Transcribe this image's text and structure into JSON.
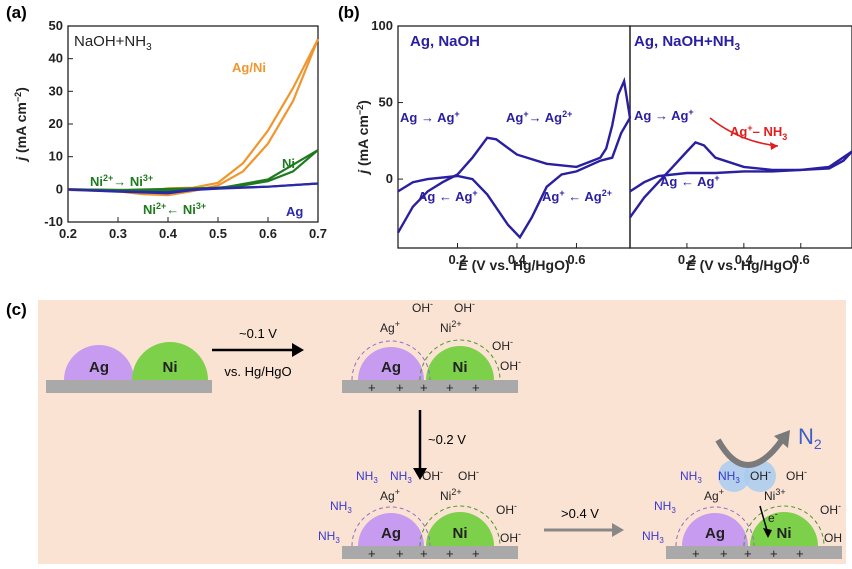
{
  "chart_data": [
    {
      "panel": "(a)",
      "type": "line",
      "title": "NaOH+NH3",
      "xlabel": "E (V vs. Hg/HgO)",
      "ylabel": "j (mA cm-2)",
      "xlim": [
        0.2,
        0.7
      ],
      "ylim": [
        -10,
        50
      ],
      "xticks": [
        "0.2",
        "0.3",
        "0.4",
        "0.5",
        "0.6",
        "0.7"
      ],
      "yticks": [
        "-10",
        "0",
        "10",
        "20",
        "30",
        "40",
        "50"
      ],
      "series": [
        {
          "name": "Ag/Ni",
          "color": "#f0962e",
          "forward": [
            [
              0.2,
              0
            ],
            [
              0.3,
              -0.3
            ],
            [
              0.35,
              -0.8
            ],
            [
              0.4,
              0.3
            ],
            [
              0.45,
              0.5
            ],
            [
              0.5,
              2
            ],
            [
              0.55,
              8
            ],
            [
              0.6,
              18
            ],
            [
              0.65,
              31
            ],
            [
              0.7,
              46
            ]
          ],
          "reverse": [
            [
              0.7,
              46
            ],
            [
              0.65,
              27
            ],
            [
              0.6,
              14
            ],
            [
              0.55,
              5.5
            ],
            [
              0.5,
              1.2
            ],
            [
              0.45,
              -0.5
            ],
            [
              0.4,
              -1.8
            ],
            [
              0.35,
              -1.5
            ],
            [
              0.3,
              -0.6
            ],
            [
              0.2,
              -0.2
            ]
          ]
        },
        {
          "name": "Ni",
          "color": "#1e7a1e",
          "forward": [
            [
              0.2,
              0
            ],
            [
              0.3,
              -0.2
            ],
            [
              0.4,
              0.1
            ],
            [
              0.5,
              0.5
            ],
            [
              0.55,
              1.2
            ],
            [
              0.6,
              2.5
            ],
            [
              0.65,
              5.5
            ],
            [
              0.7,
              12
            ]
          ],
          "reverse": [
            [
              0.7,
              12
            ],
            [
              0.6,
              3
            ],
            [
              0.5,
              0.3
            ],
            [
              0.4,
              -0.5
            ],
            [
              0.3,
              -0.2
            ],
            [
              0.2,
              0
            ]
          ]
        },
        {
          "name": "Ag",
          "color": "#2a2aa8",
          "forward": [
            [
              0.2,
              0
            ],
            [
              0.3,
              -0.6
            ],
            [
              0.4,
              -0.9
            ],
            [
              0.45,
              0
            ],
            [
              0.5,
              0.4
            ],
            [
              0.6,
              0.8
            ],
            [
              0.7,
              1.8
            ]
          ],
          "reverse": [
            [
              0.7,
              1.8
            ],
            [
              0.6,
              0.8
            ],
            [
              0.5,
              0.2
            ],
            [
              0.45,
              -0.2
            ],
            [
              0.4,
              -1.2
            ],
            [
              0.3,
              -0.7
            ],
            [
              0.2,
              -0.1
            ]
          ]
        }
      ],
      "annotations": [
        "Ni2+→ Ni3+",
        "Ni2+← Ni3+"
      ]
    },
    {
      "panel": "(b)",
      "type": "line",
      "title": "Ag, NaOH",
      "xlabel": "E (V vs. Hg/HgO)",
      "ylabel": "j (mA cm-2)",
      "xlim": [
        0.0,
        0.78
      ],
      "ylim": [
        -45,
        100
      ],
      "xticks": [
        "0.2",
        "0.4",
        "0.6"
      ],
      "yticks": [
        "0",
        "50",
        "100"
      ],
      "series": [
        {
          "name": "Ag, NaOH",
          "color": "#2a1fa0",
          "forward": [
            [
              0.0,
              -35
            ],
            [
              0.05,
              -18
            ],
            [
              0.1,
              -8
            ],
            [
              0.15,
              -2
            ],
            [
              0.2,
              3
            ],
            [
              0.25,
              14
            ],
            [
              0.3,
              27
            ],
            [
              0.33,
              26
            ],
            [
              0.4,
              16
            ],
            [
              0.5,
              10
            ],
            [
              0.6,
              8
            ],
            [
              0.68,
              14
            ],
            [
              0.7,
              20
            ],
            [
              0.72,
              35
            ],
            [
              0.74,
              55
            ],
            [
              0.76,
              64
            ],
            [
              0.78,
              40
            ]
          ],
          "reverse": [
            [
              0.78,
              40
            ],
            [
              0.75,
              30
            ],
            [
              0.72,
              14
            ],
            [
              0.7,
              13
            ],
            [
              0.68,
              12
            ],
            [
              0.6,
              5
            ],
            [
              0.55,
              3
            ],
            [
              0.5,
              -5
            ],
            [
              0.45,
              -25
            ],
            [
              0.41,
              -38
            ],
            [
              0.37,
              -30
            ],
            [
              0.3,
              -10
            ],
            [
              0.25,
              0
            ],
            [
              0.2,
              2
            ],
            [
              0.1,
              0
            ],
            [
              0.05,
              -2
            ],
            [
              0.0,
              -8
            ]
          ]
        }
      ],
      "annotations": [
        "Ag → Ag+",
        "Ag+→ Ag2+",
        "Ag ← Ag+",
        "Ag+ ← Ag2+"
      ]
    },
    {
      "panel": "(b)",
      "type": "line",
      "title": "Ag, NaOH+NH3",
      "xlabel": "E (V vs. Hg/HgO)",
      "xlim": [
        0.0,
        0.78
      ],
      "ylim": [
        -45,
        100
      ],
      "xticks": [
        "0.2",
        "0.4",
        "0.6"
      ],
      "series": [
        {
          "name": "Ag, NaOH+NH3",
          "color": "#2a1fa0",
          "forward": [
            [
              0.0,
              -25
            ],
            [
              0.05,
              -12
            ],
            [
              0.1,
              -2
            ],
            [
              0.15,
              8
            ],
            [
              0.2,
              18
            ],
            [
              0.23,
              24
            ],
            [
              0.26,
              22
            ],
            [
              0.3,
              14
            ],
            [
              0.4,
              8
            ],
            [
              0.5,
              6
            ],
            [
              0.6,
              6
            ],
            [
              0.7,
              7
            ],
            [
              0.75,
              12
            ],
            [
              0.78,
              18
            ]
          ],
          "reverse": [
            [
              0.78,
              18
            ],
            [
              0.7,
              8
            ],
            [
              0.6,
              6
            ],
            [
              0.5,
              5
            ],
            [
              0.4,
              5
            ],
            [
              0.3,
              4
            ],
            [
              0.2,
              4
            ],
            [
              0.1,
              2
            ],
            [
              0.05,
              -2
            ],
            [
              0.0,
              -8
            ]
          ]
        }
      ],
      "annotations": [
        "Ag → Ag+",
        "Ag+– NH3",
        "Ag ← Ag+"
      ]
    }
  ],
  "panel_labels": {
    "a": "(a)",
    "b": "(b)",
    "c": "(c)"
  },
  "scheme": {
    "atoms": {
      "ag": "Ag",
      "ni": "Ni"
    },
    "arrow1": {
      "top": "~0.1 V",
      "bottom": "vs. Hg/HgO"
    },
    "arrow2": "~0.2 V",
    "arrow3": ">0.4 V",
    "product": "N2",
    "labels": {
      "ag_plus": "Ag+",
      "ni2_plus": "Ni2+",
      "ni3_plus": "Ni3+",
      "oh": "OH-",
      "nh3": "NH3",
      "electron": "e-",
      "plus": "+"
    },
    "colors": {
      "ag": "#c79bf0",
      "ni": "#7dd04a",
      "background": "#fbe3d4",
      "substrate": "#a9a9a9",
      "n2": "#3a5fc8"
    }
  }
}
